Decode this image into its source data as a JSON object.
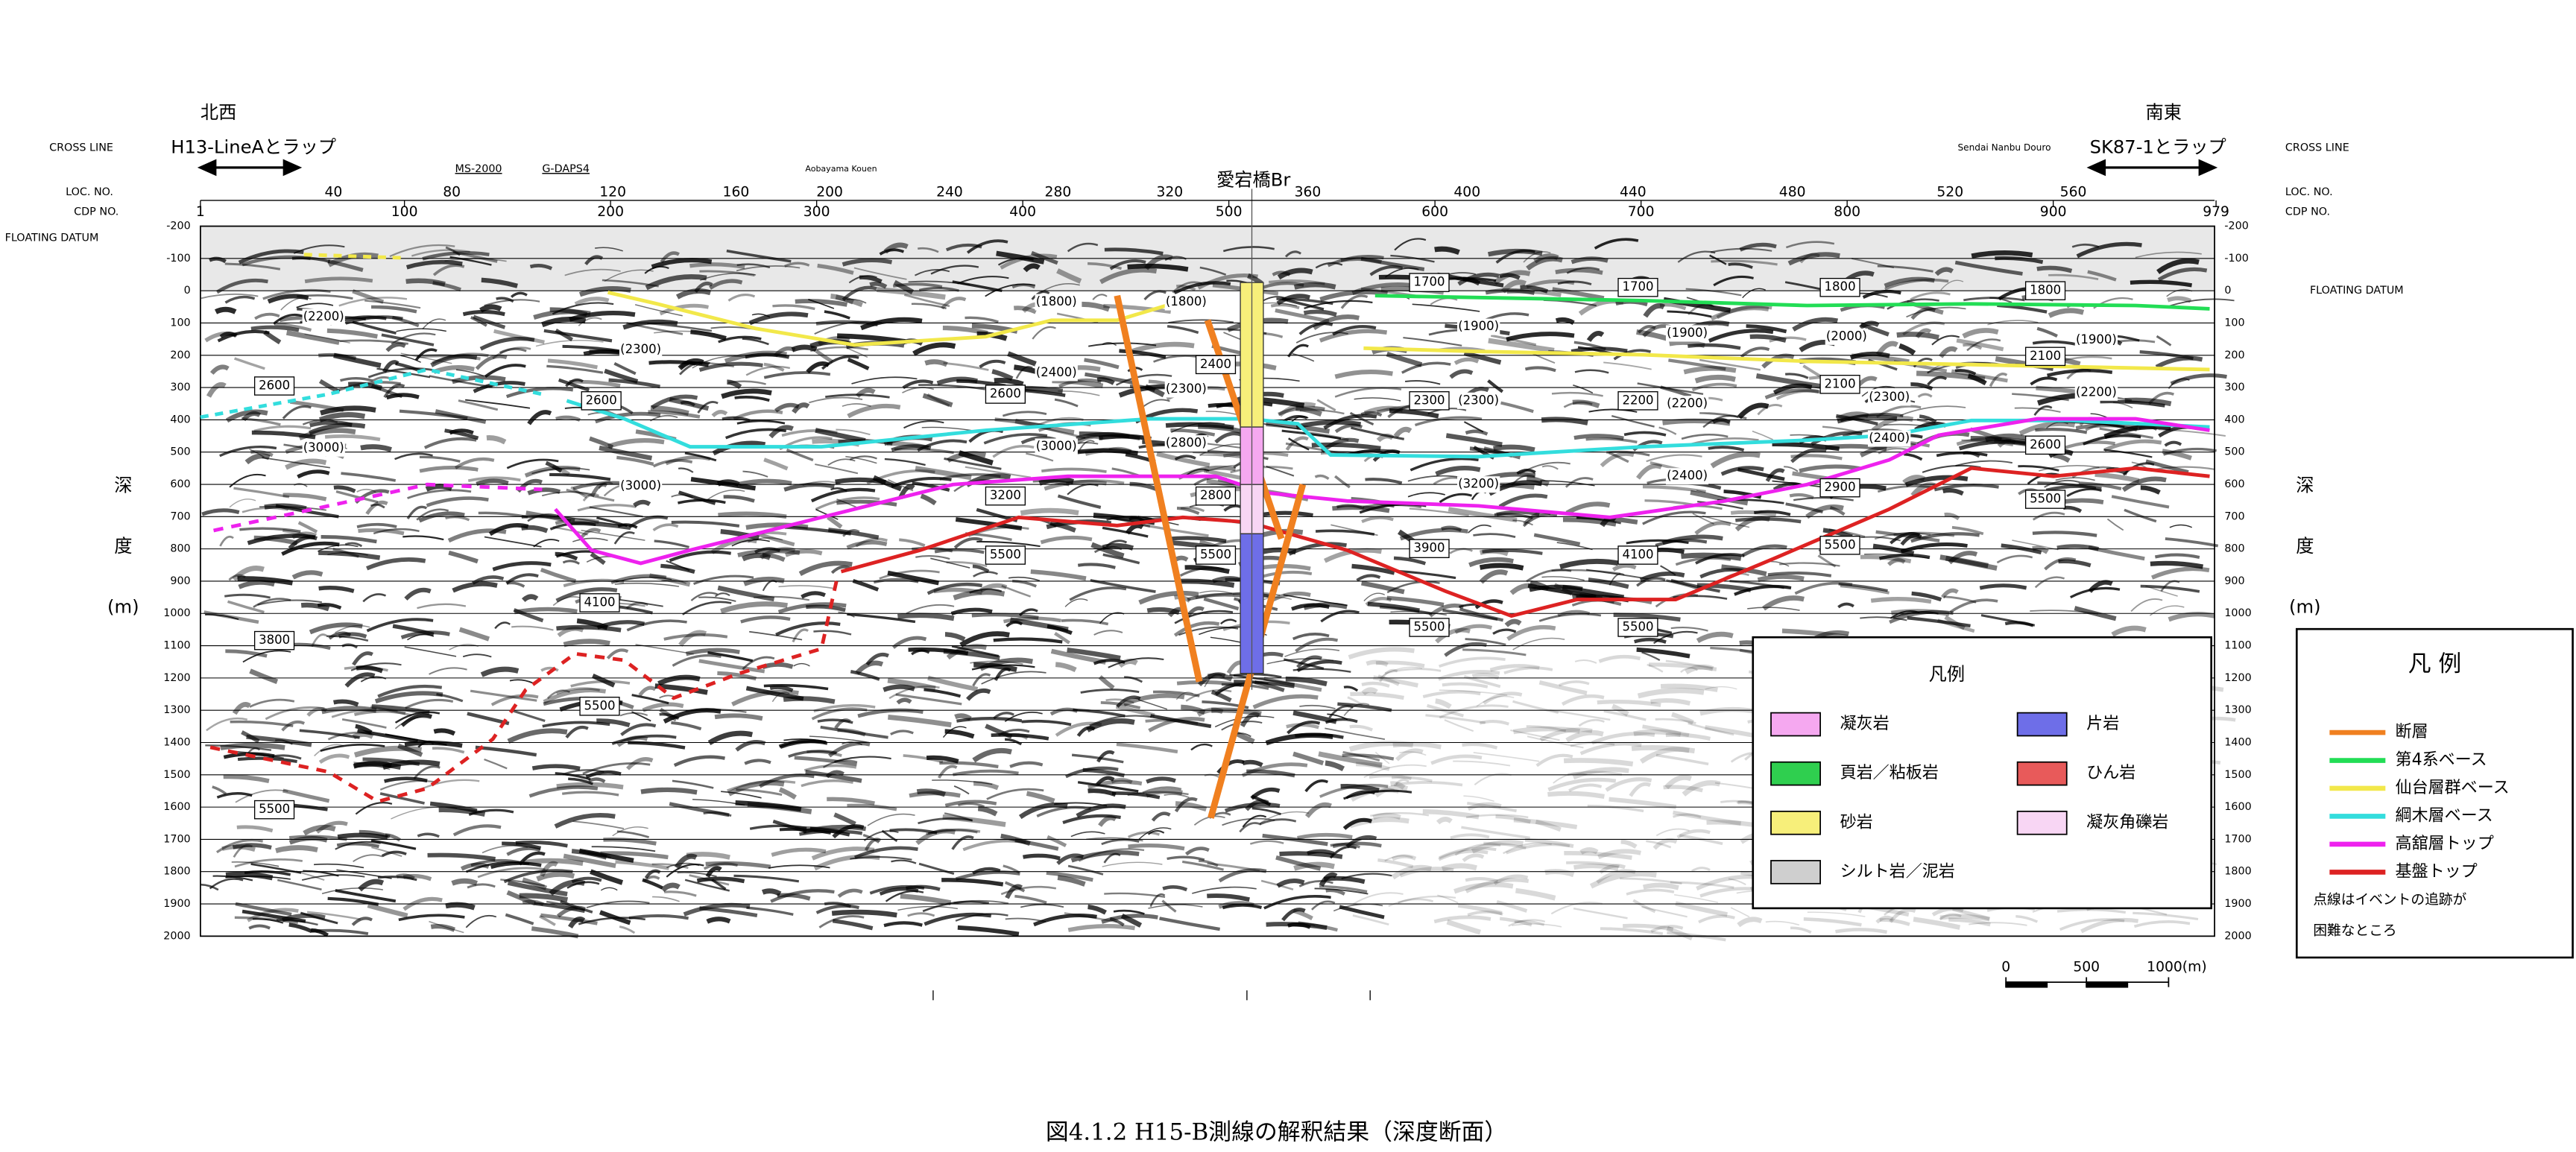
{
  "header": {
    "left_direction": "北西",
    "right_direction": "南東",
    "left_tie": "H13-LineAとラップ",
    "right_tie": "SK87-1とラップ"
  },
  "axis_labels": {
    "cross_line": "CROSS LINE",
    "loc_no": "LOC. NO.",
    "cdp_no": "CDP NO.",
    "floating_datum": "FLOATING DATUM"
  },
  "crossings": [
    "MS-2000",
    "G-DAPS4",
    "Aobayama Kouen",
    "Sendai Nanbu Douro",
    "愛宕橋Br"
  ],
  "loc_numbers": [
    40,
    80,
    120,
    160,
    200,
    240,
    280,
    320,
    360,
    400,
    440,
    480,
    520,
    560
  ],
  "cdp_numbers": [
    1,
    100,
    200,
    300,
    400,
    500,
    600,
    700,
    800,
    900,
    979
  ],
  "depth_ticks": [
    -200,
    -100,
    0,
    100,
    200,
    300,
    400,
    500,
    600,
    700,
    800,
    900,
    1000,
    1100,
    1200,
    1300,
    1400,
    1500,
    1600,
    1700,
    1800,
    1900,
    2000
  ],
  "depth_label": [
    "深",
    "度",
    "(m)"
  ],
  "velocity_labels": [
    "(2200)",
    "2600",
    "(3000)",
    "(2300)",
    "2600",
    "(3000)",
    "(1800)",
    "(1800)",
    "(2400)",
    "2600",
    "(2300)",
    "2400",
    "(3000)",
    "(2800)",
    "3200",
    "2800",
    "5500",
    "5500",
    "4100",
    "3800",
    "5500",
    "5500",
    "1700",
    "1700",
    "1800",
    "1800",
    "(1900)",
    "(1900)",
    "(2000)",
    "2100",
    "(1900)",
    "2300",
    "(2300)",
    "2200",
    "(2200)",
    "2100",
    "(2300)",
    "(2200)",
    "(2400)",
    "2600",
    "(3200)",
    "(2400)",
    "2900",
    "5500",
    "3900",
    "4100",
    "5500",
    "5500",
    "5500"
  ],
  "rock_legend": {
    "title": "凡例",
    "items": [
      "凝灰岩",
      "頁岩／粘板岩",
      "砂岩",
      "シルト岩／泥岩",
      "片岩",
      "ひん岩",
      "凝灰角礫岩"
    ]
  },
  "line_legend": {
    "title": "凡 例",
    "items": [
      "断層",
      "第4系ベース",
      "仙台層群ベース",
      "綱木層ベース",
      "高舘層トップ",
      "基盤トップ"
    ],
    "note": [
      "点線はイベントの追跡が",
      "困難なところ"
    ]
  },
  "scale_bar": [
    "0",
    "500",
    "1000(m)"
  ],
  "caption": "図4.1.2 H15-B測線の解釈結果（深度断面）"
}
